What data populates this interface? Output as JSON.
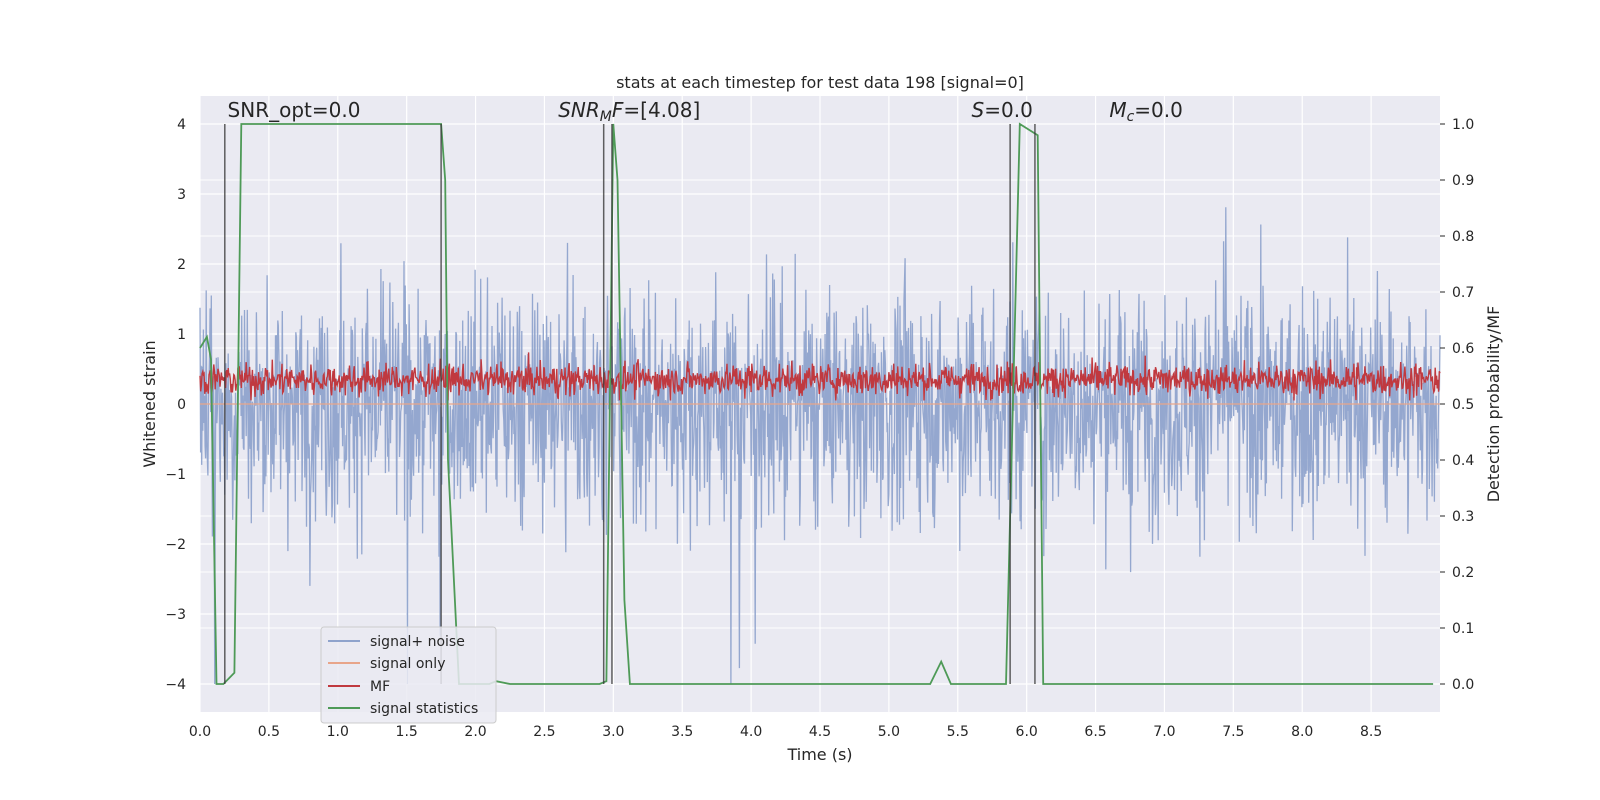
{
  "chart_data": {
    "type": "line",
    "title": "stats at each timestep for test data 198 [signal=0]",
    "xlabel": "Time (s)",
    "ylabel_left": "Whitened strain",
    "ylabel_right": "Detection probability/MF",
    "xlim": [
      0.0,
      9.0
    ],
    "ylim_left": [
      -4.4,
      4.4
    ],
    "ylim_right": [
      -0.05,
      1.05
    ],
    "x_ticks": [
      "0.0",
      "0.5",
      "1.0",
      "1.5",
      "2.0",
      "2.5",
      "3.0",
      "3.5",
      "4.0",
      "4.5",
      "5.0",
      "5.5",
      "6.0",
      "6.5",
      "7.0",
      "7.5",
      "8.0",
      "8.5"
    ],
    "y_left_ticks": [
      "4",
      "3",
      "2",
      "1",
      "0",
      "−1",
      "−2",
      "−3",
      "−4"
    ],
    "y_right_ticks": [
      "1.0",
      "0.9",
      "0.8",
      "0.7",
      "0.6",
      "0.5",
      "0.4",
      "0.3",
      "0.2",
      "0.1",
      "0.0"
    ],
    "grid": true,
    "legend_position": "lower-left",
    "annotations": [
      {
        "parts": [
          {
            "t": "SNR_opt=0.0",
            "i": false
          }
        ],
        "x": 0.2,
        "y": 4.1
      },
      {
        "parts": [
          {
            "t": "SNR",
            "i": true
          },
          {
            "t": "M",
            "i": true,
            "sub": true
          },
          {
            "t": "F",
            "i": true
          },
          {
            "t": "=[4.08]",
            "i": false
          }
        ],
        "x": 2.6,
        "y": 4.1
      },
      {
        "parts": [
          {
            "t": "S",
            "i": true
          },
          {
            "t": "=0.0",
            "i": false
          }
        ],
        "x": 5.6,
        "y": 4.1
      },
      {
        "parts": [
          {
            "t": "M",
            "i": true
          },
          {
            "t": "c",
            "i": true,
            "sub": true
          },
          {
            "t": "=0.0",
            "i": false
          }
        ],
        "x": 6.6,
        "y": 4.1
      }
    ],
    "series": [
      {
        "name": "signal+ noise",
        "color": "#8fa3cc",
        "axis": "left",
        "style": "noise",
        "amplitude_range": [
          -4.0,
          4.0
        ]
      },
      {
        "name": "signal only",
        "color": "#e8a58a",
        "axis": "left",
        "style": "flat",
        "values": [
          0,
          0
        ]
      },
      {
        "name": "MF",
        "color": "#c0393f",
        "axis": "left",
        "style": "noise",
        "amplitude_range": [
          0.05,
          0.95
        ]
      },
      {
        "name": "signal statistics",
        "color": "#4e9a57",
        "axis": "right",
        "x": [
          0.0,
          0.05,
          0.08,
          0.12,
          0.17,
          0.25,
          0.3,
          1.75,
          1.78,
          1.8,
          1.88,
          2.1,
          2.15,
          2.25,
          2.9,
          2.95,
          3.0,
          3.03,
          3.08,
          3.12,
          5.3,
          5.38,
          5.45,
          5.85,
          5.9,
          5.95,
          6.08,
          6.12,
          8.95
        ],
        "y": [
          0.6,
          0.62,
          0.58,
          0.0,
          0.0,
          0.02,
          1.0,
          1.0,
          0.9,
          0.4,
          0.0,
          0.0,
          0.005,
          0.0,
          0.0,
          0.005,
          1.0,
          0.9,
          0.15,
          0.0,
          0.0,
          0.04,
          0.0,
          0.0,
          0.5,
          1.0,
          0.98,
          0.0,
          0.0
        ]
      }
    ],
    "vlines_x": [
      0.18,
      1.75,
      2.93,
      2.99,
      5.88,
      6.06
    ]
  }
}
